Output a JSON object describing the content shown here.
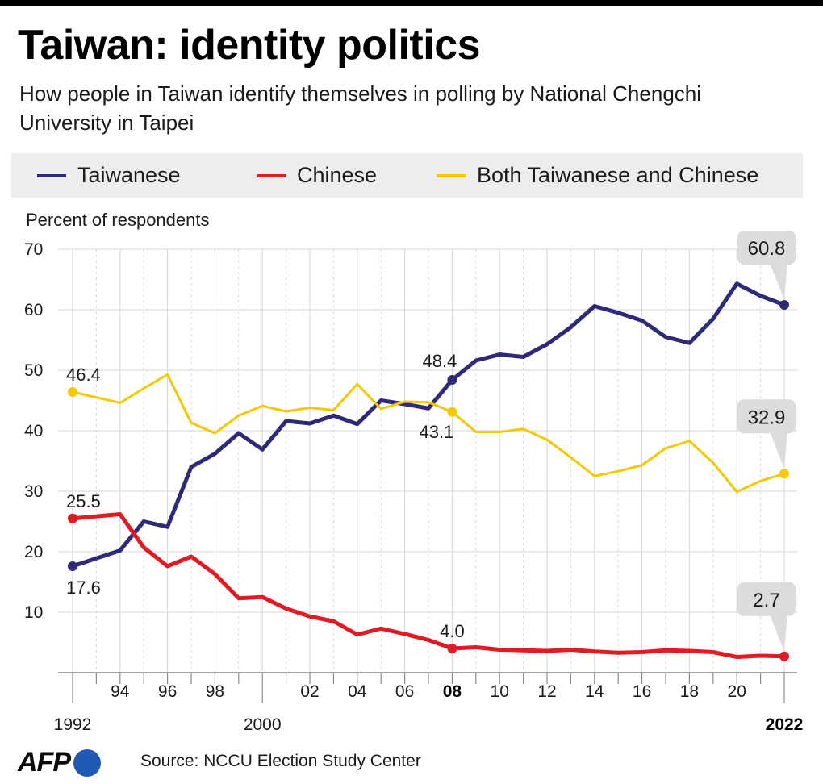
{
  "header": {
    "title": "Taiwan: identity politics",
    "subtitle": "How people in Taiwan identify themselves in polling by National Chengchi University in Taipei"
  },
  "legend": [
    {
      "label": "Taiwanese",
      "color": "#2e2a78"
    },
    {
      "label": "Chinese",
      "color": "#e01b24"
    },
    {
      "label": "Both Taiwanese and Chinese",
      "color": "#f5c800"
    }
  ],
  "chart_data": {
    "type": "line",
    "ylabel": "Percent of respondents",
    "ylim": [
      0,
      70
    ],
    "xlim": [
      1992,
      2022
    ],
    "yticks": [
      "10",
      "20",
      "30",
      "40",
      "50",
      "60",
      "70"
    ],
    "xticks": [
      {
        "year": 1994,
        "label": "94",
        "row": 1
      },
      {
        "year": 1996,
        "label": "96",
        "row": 1
      },
      {
        "year": 1998,
        "label": "98",
        "row": 1
      },
      {
        "year": 2002,
        "label": "02",
        "row": 1
      },
      {
        "year": 2004,
        "label": "04",
        "row": 1
      },
      {
        "year": 2006,
        "label": "06",
        "row": 1
      },
      {
        "year": 2008,
        "label": "08",
        "row": 1,
        "bold": true
      },
      {
        "year": 2010,
        "label": "10",
        "row": 1
      },
      {
        "year": 2012,
        "label": "12",
        "row": 1
      },
      {
        "year": 2014,
        "label": "14",
        "row": 1
      },
      {
        "year": 2016,
        "label": "16",
        "row": 1
      },
      {
        "year": 2018,
        "label": "18",
        "row": 1
      },
      {
        "year": 2020,
        "label": "20",
        "row": 1
      },
      {
        "year": 1992,
        "label": "1992",
        "row": 2
      },
      {
        "year": 2000,
        "label": "2000",
        "row": 2
      },
      {
        "year": 2022,
        "label": "2022",
        "row": 2,
        "bold": true
      }
    ],
    "grid": true,
    "legend_position": "top",
    "x": [
      1992,
      1994,
      1995,
      1996,
      1997,
      1998,
      1999,
      2000,
      2001,
      2002,
      2003,
      2004,
      2005,
      2006,
      2007,
      2008,
      2009,
      2010,
      2011,
      2012,
      2013,
      2014,
      2015,
      2016,
      2017,
      2018,
      2019,
      2020,
      2021,
      2022
    ],
    "series": [
      {
        "name": "Taiwanese",
        "color": "#2e2a78",
        "width": 5,
        "values": [
          17.6,
          20.2,
          25.0,
          24.1,
          34.0,
          36.2,
          39.6,
          36.9,
          41.6,
          41.2,
          42.5,
          41.1,
          45.0,
          44.4,
          43.7,
          48.4,
          51.6,
          52.6,
          52.2,
          54.3,
          57.1,
          60.6,
          59.5,
          58.2,
          55.5,
          54.5,
          58.5,
          64.3,
          62.3,
          60.8
        ]
      },
      {
        "name": "Both Taiwanese and Chinese",
        "color": "#f5c800",
        "width": 3,
        "values": [
          46.4,
          44.6,
          47.0,
          49.3,
          41.3,
          39.6,
          42.5,
          44.1,
          43.2,
          43.8,
          43.4,
          47.7,
          43.6,
          44.8,
          44.7,
          43.1,
          39.8,
          39.8,
          40.3,
          38.5,
          35.6,
          32.5,
          33.3,
          34.3,
          37.1,
          38.3,
          34.7,
          29.9,
          31.7,
          32.9
        ]
      },
      {
        "name": "Chinese",
        "color": "#e01b24",
        "width": 5,
        "values": [
          25.5,
          26.2,
          20.7,
          17.6,
          19.2,
          16.3,
          12.3,
          12.5,
          10.6,
          9.3,
          8.5,
          6.3,
          7.3,
          6.4,
          5.4,
          4.0,
          4.2,
          3.8,
          3.7,
          3.6,
          3.8,
          3.5,
          3.3,
          3.4,
          3.7,
          3.6,
          3.4,
          2.6,
          2.8,
          2.7
        ]
      }
    ],
    "data_labels": [
      {
        "series": "Taiwanese",
        "x": 1992,
        "text": "17.6",
        "pos": "below"
      },
      {
        "series": "Chinese",
        "x": 1992,
        "text": "25.5",
        "pos": "above"
      },
      {
        "series": "Both Taiwanese and Chinese",
        "x": 1992,
        "text": "46.4",
        "pos": "above"
      },
      {
        "series": "Taiwanese",
        "x": 2008,
        "text": "48.4",
        "pos": "above-left"
      },
      {
        "series": "Both Taiwanese and Chinese",
        "x": 2008,
        "text": "43.1",
        "pos": "below-left"
      },
      {
        "series": "Chinese",
        "x": 2008,
        "text": "4.0",
        "pos": "above"
      }
    ],
    "callouts": [
      {
        "series": "Taiwanese",
        "x": 2022,
        "text": "60.8"
      },
      {
        "series": "Both Taiwanese and Chinese",
        "x": 2022,
        "text": "32.9"
      },
      {
        "series": "Chinese",
        "x": 2022,
        "text": "2.7"
      }
    ]
  },
  "footer": {
    "logo": "AFP",
    "source": "Source: NCCU Election Study Center"
  }
}
